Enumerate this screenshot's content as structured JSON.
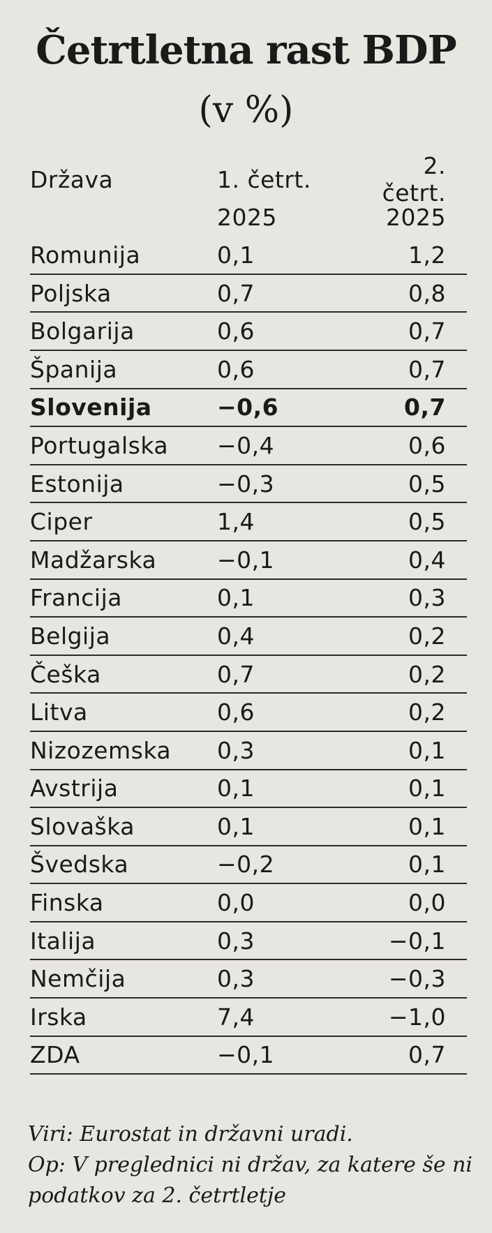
{
  "title": "Četrtletna rast BDP",
  "subtitle": "(v %)",
  "table": {
    "columns": [
      [
        "Država"
      ],
      [
        "1. četrt.",
        "2025"
      ],
      [
        "2. četrt.",
        "2025"
      ]
    ],
    "bold_row": 4,
    "rows": [
      [
        "Romunija",
        "0,1",
        "1,2"
      ],
      [
        "Poljska",
        "0,7",
        "0,8"
      ],
      [
        "Bolgarija",
        "0,6",
        "0,7"
      ],
      [
        "Španija",
        "0,6",
        "0,7"
      ],
      [
        "Slovenija",
        "−0,6",
        "0,7"
      ],
      [
        "Portugalska",
        "−0,4",
        "0,6"
      ],
      [
        "Estonija",
        "−0,3",
        "0,5"
      ],
      [
        "Ciper",
        "1,4",
        "0,5"
      ],
      [
        "Madžarska",
        "−0,1",
        "0,4"
      ],
      [
        "Francija",
        "0,1",
        "0,3"
      ],
      [
        "Belgija",
        "0,4",
        "0,2"
      ],
      [
        "Češka",
        "0,7",
        "0,2"
      ],
      [
        "Litva",
        "0,6",
        "0,2"
      ],
      [
        "Nizozemska",
        "0,3",
        "0,1"
      ],
      [
        "Avstrija",
        "0,1",
        "0,1"
      ],
      [
        "Slovaška",
        "0,1",
        "0,1"
      ],
      [
        "Švedska",
        "−0,2",
        "0,1"
      ],
      [
        "Finska",
        "0,0",
        "0,0"
      ],
      [
        "Italija",
        "0,3",
        "−0,1"
      ],
      [
        "Nemčija",
        "0,3",
        "−0,3"
      ],
      [
        "Irska",
        "7,4",
        "−1,0"
      ],
      [
        "ZDA",
        "−0,1",
        "0,7"
      ]
    ]
  },
  "notes": [
    "Viri: Eurostat in državni uradi.",
    "Op: V preglednici ni držav, za katere še ni podatkov za 2. četrtletje"
  ]
}
